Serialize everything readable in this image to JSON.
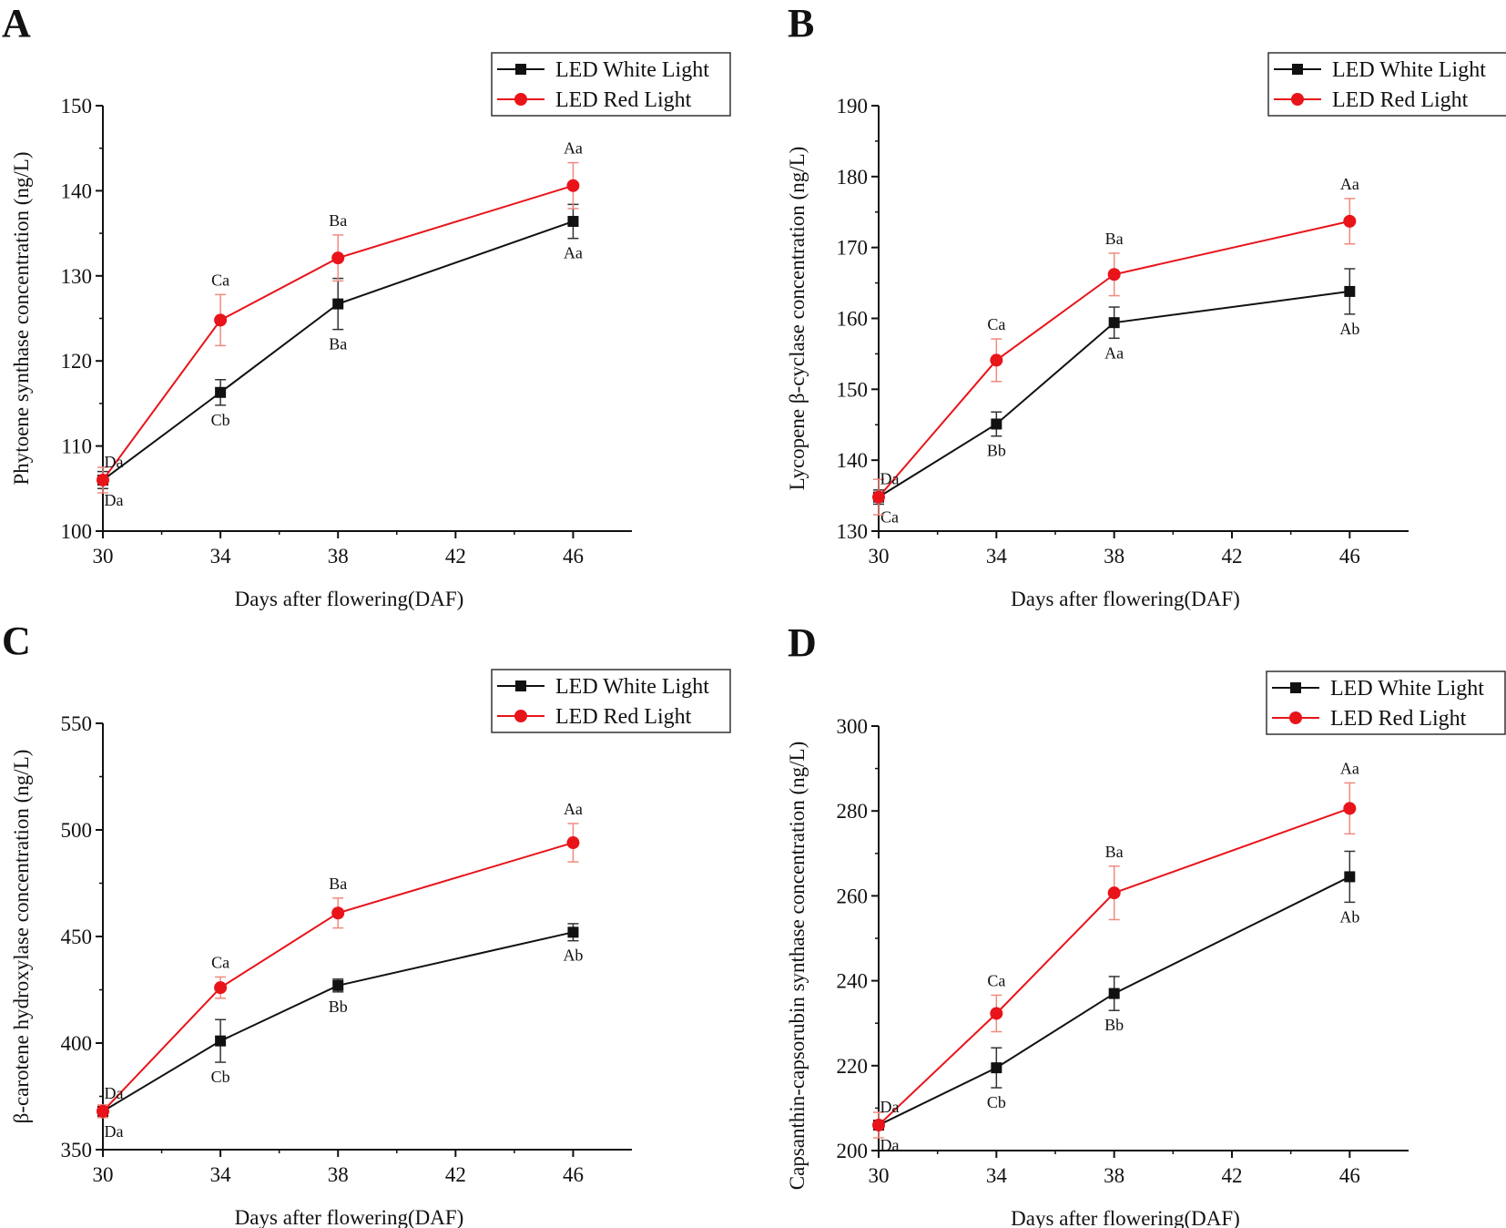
{
  "colors": {
    "white_series": "#111111",
    "red_series": "#e8141a",
    "red_error": "#f08a80"
  },
  "chart_data": [
    {
      "panel": "A",
      "type": "line",
      "xlabel": "Days after flowering(DAF)",
      "ylabel": "Phytoene synthase concentration (ng/L)",
      "xlim": [
        30,
        48
      ],
      "xticks": [
        30,
        34,
        38,
        42,
        46
      ],
      "ylim": [
        100,
        150
      ],
      "yticks": [
        100,
        110,
        120,
        130,
        140,
        150
      ],
      "legend_position": "top-right",
      "x": [
        30,
        34,
        38,
        46
      ],
      "series": [
        {
          "name": "LED White Light",
          "values": [
            106.0,
            116.3,
            126.7,
            136.4
          ],
          "errors": [
            1.0,
            1.5,
            3.0,
            2.0
          ],
          "letters": [
            "Da",
            "Cb",
            "Ba",
            "Aa"
          ]
        },
        {
          "name": "LED Red Light",
          "values": [
            106.0,
            124.8,
            132.1,
            140.6
          ],
          "errors": [
            1.5,
            3.0,
            2.7,
            2.7
          ],
          "letters": [
            "Da",
            "Ca",
            "Ba",
            "Aa"
          ]
        }
      ]
    },
    {
      "panel": "B",
      "type": "line",
      "xlabel": "Days after flowering(DAF)",
      "ylabel": "Lycopene β-cyclase concentration (ng/L)",
      "xlim": [
        30,
        48
      ],
      "xticks": [
        30,
        34,
        38,
        42,
        46
      ],
      "ylim": [
        130,
        190
      ],
      "yticks": [
        130,
        140,
        150,
        160,
        170,
        180,
        190
      ],
      "legend_position": "top-right",
      "x": [
        30,
        34,
        38,
        46
      ],
      "series": [
        {
          "name": "LED White Light",
          "values": [
            134.8,
            145.1,
            159.4,
            163.8
          ],
          "errors": [
            1.0,
            1.7,
            2.2,
            3.2
          ],
          "letters": [
            "Ca",
            "Bb",
            "Aa",
            "Ab"
          ]
        },
        {
          "name": "LED Red Light",
          "values": [
            134.8,
            154.1,
            166.2,
            173.7
          ],
          "errors": [
            2.5,
            3.0,
            3.0,
            3.2
          ],
          "letters": [
            "Da",
            "Ca",
            "Ba",
            "Aa"
          ]
        }
      ]
    },
    {
      "panel": "C",
      "type": "line",
      "xlabel": "Days after flowering(DAF)",
      "ylabel": "β-carotene hydroxylase concentration (ng/L)",
      "xlim": [
        30,
        48
      ],
      "xticks": [
        30,
        34,
        38,
        42,
        46
      ],
      "ylim": [
        350,
        550
      ],
      "yticks": [
        350,
        400,
        450,
        500,
        550
      ],
      "legend_position": "top-right",
      "x": [
        30,
        34,
        38,
        46
      ],
      "series": [
        {
          "name": "LED White Light",
          "values": [
            368,
            401,
            427,
            452
          ],
          "errors": [
            2,
            10,
            3,
            4
          ],
          "letters": [
            "Da",
            "Cb",
            "Bb",
            "Ab"
          ]
        },
        {
          "name": "LED Red Light",
          "values": [
            368,
            426,
            461,
            494
          ],
          "errors": [
            3,
            5,
            7,
            9
          ],
          "letters": [
            "Da",
            "Ca",
            "Ba",
            "Aa"
          ]
        }
      ]
    },
    {
      "panel": "D",
      "type": "line",
      "xlabel": "Days after flowering(DAF)",
      "ylabel": "Capsanthin-capsorubin synthase concentration (ng/L)",
      "xlim": [
        30,
        48
      ],
      "xticks": [
        30,
        34,
        38,
        42,
        46
      ],
      "ylim": [
        200,
        300
      ],
      "yticks": [
        200,
        220,
        240,
        260,
        280,
        300
      ],
      "legend_position": "top-right",
      "x": [
        30,
        34,
        38,
        46
      ],
      "series": [
        {
          "name": "LED White Light",
          "values": [
            206.0,
            219.5,
            237.0,
            264.5
          ],
          "errors": [
            1.0,
            4.7,
            4.0,
            6.0
          ],
          "letters": [
            "Da",
            "Cb",
            "Bb",
            "Ab"
          ]
        },
        {
          "name": "LED Red Light",
          "values": [
            206.0,
            232.3,
            260.7,
            280.6
          ],
          "errors": [
            3.0,
            4.3,
            6.3,
            6.0
          ],
          "letters": [
            "Da",
            "Ca",
            "Ba",
            "Aa"
          ]
        }
      ]
    }
  ]
}
